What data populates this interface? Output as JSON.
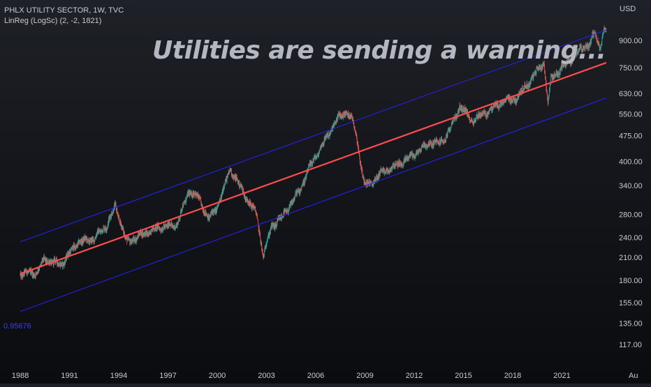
{
  "header": {
    "symbol_line": "PHLX UTILITY SECTOR, 1W, TVC",
    "indicator_line": "LinReg (LogSc) (2, -2, 1821)",
    "currency": "USD"
  },
  "headline": "Utilities are sending a warning...",
  "regression": {
    "r_value_label": "0.95676"
  },
  "colors": {
    "up": "#26a69a",
    "down": "#ef5350",
    "regression_line": "#ff4d4d",
    "channel_lines": "#2323e6",
    "axis_text": "#c8cad0"
  },
  "chart_data": {
    "type": "line",
    "title": "",
    "scale": "log",
    "y_ticks": [
      "900.00",
      "750.00",
      "630.00",
      "550.00",
      "475.00",
      "400.00",
      "340.00",
      "280.00",
      "240.00",
      "210.00",
      "180.00",
      "155.00",
      "135.00",
      "117.00"
    ],
    "x_ticks": [
      "1988",
      "1991",
      "1994",
      "1997",
      "2000",
      "2003",
      "2006",
      "2009",
      "2012",
      "2015",
      "2018",
      "2021",
      "Au"
    ],
    "ylim": [
      105,
      1040
    ],
    "xlim": [
      1988,
      2023.9
    ],
    "series": [
      {
        "values_x": [
          1988.0,
          1989.0,
          1989.5,
          1990.5,
          1991.5,
          1992.5,
          1993.3,
          1993.8,
          1994.5,
          1995.5,
          1996.5,
          1997.5,
          1998.3,
          1998.8,
          1999.5,
          2000.0,
          2000.8,
          2001.7,
          2002.4,
          2002.8,
          2003.3,
          2004.0,
          2005.0,
          2005.7,
          2006.5,
          2007.3,
          2007.9,
          2008.3,
          2008.6,
          2008.9,
          2009.2,
          2010.0,
          2011.0,
          2012.0,
          2013.0,
          2013.5,
          2014.0,
          2014.8,
          2015.5,
          2016.5,
          2017.5,
          2018.2,
          2018.9,
          2019.9,
          2020.15,
          2020.35,
          2020.9,
          2021.5,
          2022.0,
          2022.7,
          2023.0,
          2023.3,
          2023.5,
          2023.7
        ],
        "values_y": [
          188,
          190,
          207,
          200,
          232,
          238,
          262,
          296,
          232,
          246,
          257,
          260,
          328,
          315,
          272,
          294,
          380,
          318,
          280,
          212,
          258,
          276,
          328,
          390,
          455,
          530,
          560,
          520,
          440,
          352,
          340,
          370,
          390,
          420,
          455,
          450,
          475,
          580,
          525,
          560,
          600,
          610,
          670,
          780,
          590,
          700,
          740,
          790,
          840,
          880,
          950,
          860,
          950,
          960
        ]
      }
    ],
    "channel": {
      "start_year": 1988.0,
      "end_year": 2023.7,
      "regression": [
        188,
        775
      ],
      "upper": [
        233,
        965
      ],
      "lower": [
        146,
        612
      ]
    }
  }
}
